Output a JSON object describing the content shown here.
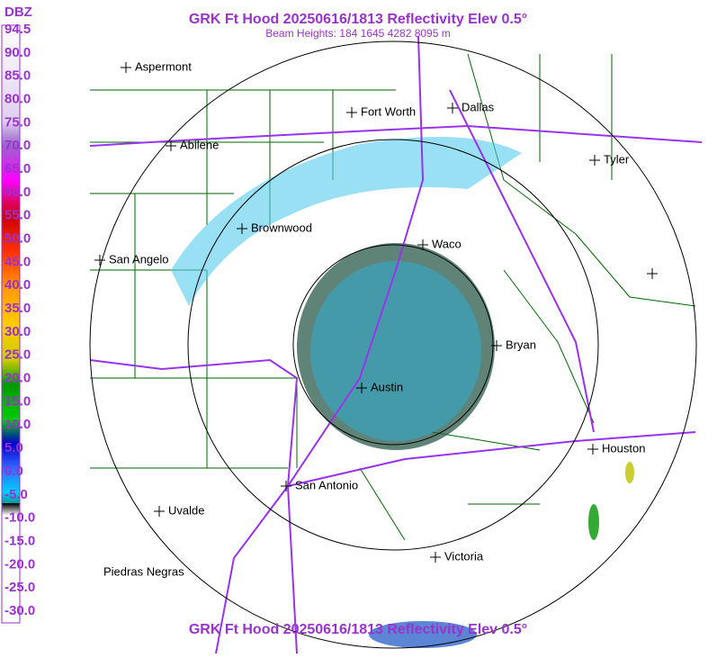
{
  "header": {
    "title": "GRK Ft Hood 20250616/1813 Reflectivity Elev 0.5°",
    "subtitle": "Beam Heights: 184 1645 4282 8095 m"
  },
  "legend": {
    "unit": "DBZ",
    "labels": [
      "94.5",
      "90.0",
      "85.0",
      "80.0",
      "75.0",
      "70.0",
      "65.0",
      "60.0",
      "55.0",
      "50.0",
      "45.0",
      "40.0",
      "35.0",
      "30.0",
      "25.0",
      "20.0",
      "15.0",
      "10.0",
      "5.0",
      "0.0",
      "-5.0",
      "-10.0",
      "-15.0",
      "-20.0",
      "-25.0",
      "-30.0"
    ]
  },
  "cities": [
    "Aspermont",
    "Fort Worth",
    "Dallas",
    "Abilene",
    "Tyler",
    "Brownwood",
    "Waco",
    "San Angelo",
    "Bryan",
    "Austin",
    "Houston",
    "San Antonio",
    "Uvalde",
    "Victoria",
    "Piedras Negras"
  ],
  "footer": {
    "title": "GRK Ft Hood 20250616/1813 Reflectivity Elev 0.5°"
  }
}
